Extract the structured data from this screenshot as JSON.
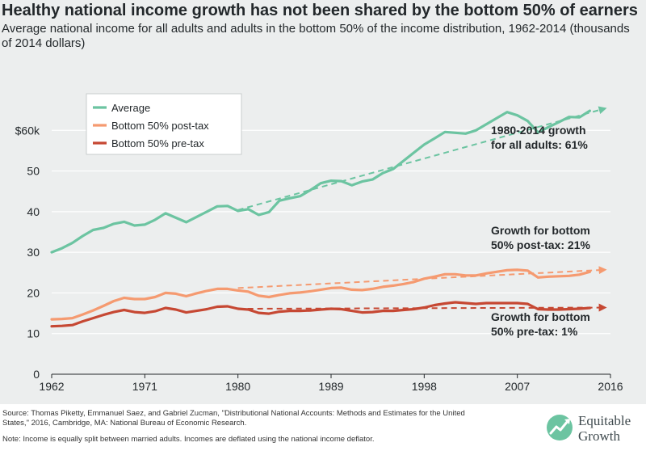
{
  "header": {
    "title": "Healthy national income growth has not been shared by the bottom 50% of earners",
    "subtitle": "Average national income for all adults and adults in the bottom 50% of the income distribution, 1962-2014 (thousands of 2014 dollars)"
  },
  "chart_data": {
    "type": "line",
    "xlim": [
      1962,
      2016
    ],
    "ylim": [
      0,
      70
    ],
    "x_ticks": [
      {
        "value": 1962,
        "label": "1962"
      },
      {
        "value": 1971,
        "label": "1971"
      },
      {
        "value": 1980,
        "label": "1980"
      },
      {
        "value": 1989,
        "label": "1989"
      },
      {
        "value": 1998,
        "label": "1998"
      },
      {
        "value": 2007,
        "label": "2007"
      },
      {
        "value": 2016,
        "label": "2016"
      }
    ],
    "y_ticks": [
      {
        "value": 0,
        "label": "0"
      },
      {
        "value": 10,
        "label": "10"
      },
      {
        "value": 20,
        "label": "20"
      },
      {
        "value": 30,
        "label": "30"
      },
      {
        "value": 40,
        "label": "40"
      },
      {
        "value": 50,
        "label": "50"
      },
      {
        "value": 60,
        "label": "$60k"
      }
    ],
    "grid": "horizontal",
    "legend_position": "top-left",
    "x": [
      1962,
      1963,
      1964,
      1965,
      1966,
      1967,
      1968,
      1969,
      1970,
      1971,
      1972,
      1973,
      1974,
      1975,
      1976,
      1977,
      1978,
      1979,
      1980,
      1981,
      1982,
      1983,
      1984,
      1985,
      1986,
      1987,
      1988,
      1989,
      1990,
      1991,
      1992,
      1993,
      1994,
      1995,
      1996,
      1997,
      1998,
      1999,
      2000,
      2001,
      2002,
      2003,
      2004,
      2005,
      2006,
      2007,
      2008,
      2009,
      2010,
      2011,
      2012,
      2013,
      2014
    ],
    "series": [
      {
        "name": "Average",
        "color": "#6cc4a1",
        "values": [
          30.0,
          31.0,
          32.3,
          34.0,
          35.5,
          36.0,
          37.0,
          37.5,
          36.6,
          36.8,
          38.0,
          39.6,
          38.5,
          37.4,
          38.7,
          40.0,
          41.3,
          41.4,
          40.2,
          40.6,
          39.2,
          39.9,
          42.7,
          43.3,
          43.8,
          45.3,
          47.0,
          47.6,
          47.5,
          46.5,
          47.4,
          47.9,
          49.5,
          50.5,
          52.5,
          54.5,
          56.5,
          58.0,
          59.6,
          59.4,
          59.2,
          60.0,
          61.5,
          63.0,
          64.5,
          63.7,
          62.3,
          59.5,
          60.8,
          62.0,
          63.3,
          63.2,
          64.8
        ]
      },
      {
        "name": "Bottom 50% post-tax",
        "color": "#f59a70",
        "values": [
          13.5,
          13.6,
          13.8,
          14.7,
          15.7,
          16.8,
          18.0,
          18.8,
          18.5,
          18.5,
          19.0,
          20.0,
          19.8,
          19.2,
          19.9,
          20.5,
          21.0,
          21.0,
          20.6,
          20.3,
          19.3,
          19.0,
          19.5,
          19.9,
          20.1,
          20.4,
          20.8,
          21.2,
          21.3,
          20.8,
          20.7,
          21.0,
          21.5,
          21.8,
          22.2,
          22.7,
          23.5,
          24.0,
          24.6,
          24.6,
          24.3,
          24.3,
          24.8,
          25.2,
          25.6,
          25.7,
          25.5,
          23.8,
          24.0,
          24.1,
          24.2,
          24.5,
          25.2
        ]
      },
      {
        "name": "Bottom 50% pre-tax",
        "color": "#c64833",
        "values": [
          11.8,
          11.9,
          12.1,
          13.0,
          13.8,
          14.6,
          15.3,
          15.8,
          15.3,
          15.1,
          15.5,
          16.3,
          15.9,
          15.2,
          15.6,
          16.0,
          16.6,
          16.7,
          16.1,
          15.9,
          15.1,
          14.9,
          15.4,
          15.6,
          15.6,
          15.7,
          15.9,
          16.1,
          16.0,
          15.6,
          15.2,
          15.3,
          15.6,
          15.6,
          15.8,
          16.0,
          16.4,
          17.0,
          17.4,
          17.7,
          17.5,
          17.3,
          17.5,
          17.5,
          17.5,
          17.5,
          17.3,
          16.0,
          15.9,
          15.9,
          16.0,
          16.1,
          16.3
        ]
      }
    ],
    "trend_lines": [
      {
        "series": "Average",
        "color": "#6cc4a1",
        "x": [
          1980,
          2015.5
        ],
        "y": [
          40.4,
          65.4
        ]
      },
      {
        "series": "Bottom 50% post-tax",
        "color": "#f59a70",
        "x": [
          1980,
          2015.5
        ],
        "y": [
          21.2,
          25.7
        ]
      },
      {
        "series": "Bottom 50% pre-tax",
        "color": "#c64833",
        "x": [
          1980,
          2015.5
        ],
        "y": [
          16.1,
          16.4
        ]
      }
    ],
    "annotations": [
      {
        "lines": [
          "1980-2014 growth",
          "for all adults: 61%"
        ]
      },
      {
        "lines": [
          "Growth for bottom",
          "50% post-tax: 21%"
        ]
      },
      {
        "lines": [
          "Growth for bottom",
          "50% pre-tax: 1%"
        ]
      }
    ]
  },
  "footer": {
    "source_line1": "Source: Thomas Piketty, Emmanuel Saez, and Gabriel Zucman, \"Distributional National Accounts: Methods and Estimates for the United",
    "source_line2": "States,\" 2016, Cambridge, MA: National Bureau of Economic Research.",
    "note": "Note: Income is equally split between married adults. Incomes are deflated using the national income deflator."
  },
  "logo": {
    "line1": "Equitable",
    "line2": "Growth",
    "color": "#3f4a4e",
    "accent": "#6cc4a1"
  }
}
